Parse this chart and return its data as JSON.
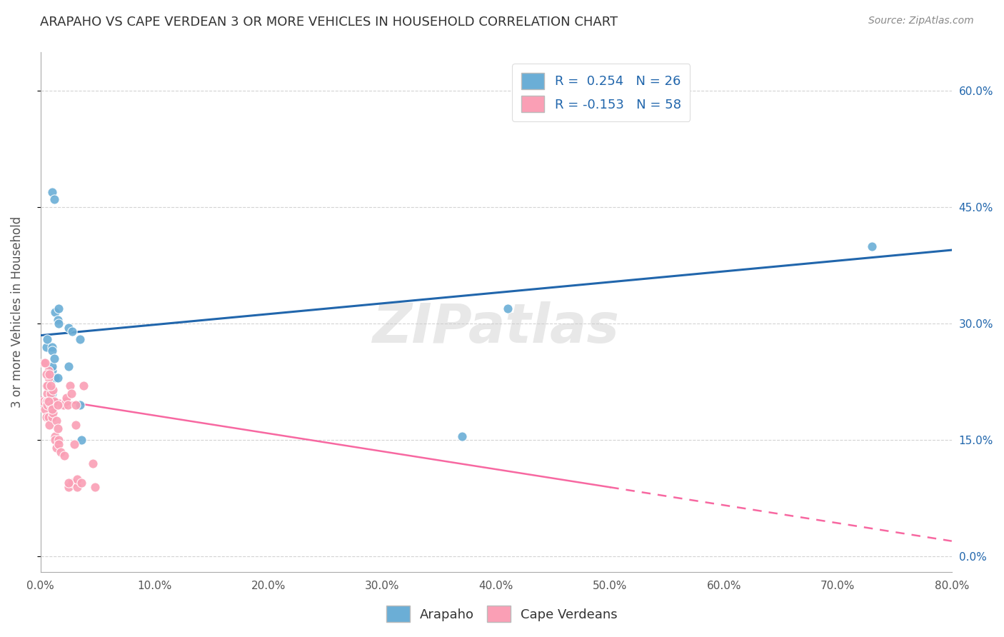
{
  "title": "ARAPAHO VS CAPE VERDEAN 3 OR MORE VEHICLES IN HOUSEHOLD CORRELATION CHART",
  "source": "Source: ZipAtlas.com",
  "ylabel": "3 or more Vehicles in Household",
  "watermark": "ZIPatlas",
  "xlim": [
    0.0,
    80.0
  ],
  "ylim": [
    -2.0,
    65.0
  ],
  "xticks": [
    0.0,
    10.0,
    20.0,
    30.0,
    40.0,
    50.0,
    60.0,
    70.0,
    80.0
  ],
  "yticks": [
    0.0,
    15.0,
    30.0,
    45.0,
    60.0
  ],
  "xticklabels": [
    "0.0%",
    "10.0%",
    "20.0%",
    "30.0%",
    "40.0%",
    "50.0%",
    "60.0%",
    "70.0%",
    "80.0%"
  ],
  "yticklabels_right": [
    "0.0%",
    "15.0%",
    "30.0%",
    "45.0%",
    "60.0%"
  ],
  "legend_label1": "Arapaho",
  "legend_label2": "Cape Verdeans",
  "arapaho_color": "#6baed6",
  "cape_verdean_color": "#fa9fb5",
  "arapaho_line_color": "#2166ac",
  "cape_verdean_line_color": "#f768a1",
  "background_color": "#ffffff",
  "grid_color": "#c8c8c8",
  "title_color": "#333333",
  "arapaho_x": [
    0.5,
    0.6,
    1.0,
    1.2,
    1.3,
    1.5,
    1.6,
    1.6,
    2.5,
    2.8,
    3.5,
    3.6,
    1.0,
    1.0,
    1.0,
    1.0,
    1.0,
    1.2,
    1.3,
    1.5,
    2.5,
    3.5,
    37.0,
    41.0,
    73.0,
    1.0
  ],
  "arapaho_y": [
    27.0,
    28.0,
    47.0,
    46.0,
    31.5,
    30.5,
    32.0,
    30.0,
    29.5,
    29.0,
    28.0,
    15.0,
    27.0,
    24.0,
    26.5,
    24.5,
    21.0,
    25.5,
    23.0,
    23.0,
    24.5,
    19.5,
    15.5,
    32.0,
    40.0,
    19.0
  ],
  "cape_verdean_x": [
    0.3,
    0.4,
    0.5,
    0.5,
    0.5,
    0.6,
    0.6,
    0.6,
    0.7,
    0.7,
    0.7,
    0.8,
    0.8,
    0.9,
    0.9,
    1.0,
    1.0,
    1.1,
    1.1,
    1.2,
    1.3,
    1.3,
    1.4,
    1.4,
    1.5,
    1.6,
    1.6,
    1.8,
    1.9,
    2.0,
    2.1,
    2.2,
    2.2,
    2.3,
    2.4,
    2.5,
    2.6,
    2.7,
    2.8,
    3.0,
    3.1,
    3.1,
    3.2,
    3.2,
    3.6,
    3.8,
    4.6,
    4.8,
    0.3,
    0.4,
    0.5,
    0.6,
    0.7,
    0.8,
    0.9,
    1.0,
    1.5,
    2.5
  ],
  "cape_verdean_y": [
    20.0,
    19.0,
    22.0,
    20.0,
    18.0,
    21.0,
    20.0,
    19.5,
    18.0,
    24.0,
    23.0,
    17.0,
    20.0,
    19.5,
    21.0,
    18.0,
    19.5,
    18.5,
    21.5,
    20.0,
    15.5,
    15.0,
    14.0,
    17.5,
    16.5,
    15.0,
    14.5,
    13.5,
    19.5,
    19.5,
    13.0,
    20.0,
    20.0,
    20.5,
    19.5,
    9.0,
    22.0,
    21.0,
    9.5,
    14.5,
    17.0,
    19.5,
    9.0,
    10.0,
    9.5,
    22.0,
    12.0,
    9.0,
    25.0,
    25.0,
    23.5,
    22.0,
    20.0,
    23.5,
    22.0,
    19.0,
    19.5,
    9.5
  ],
  "arapaho_trend_x": [
    0.0,
    80.0
  ],
  "arapaho_trend_y": [
    28.5,
    39.5
  ],
  "cape_verdean_trend_x": [
    0.0,
    80.0
  ],
  "cape_verdean_trend_y": [
    20.5,
    2.0
  ],
  "cape_verdean_solid_end": 50.0
}
